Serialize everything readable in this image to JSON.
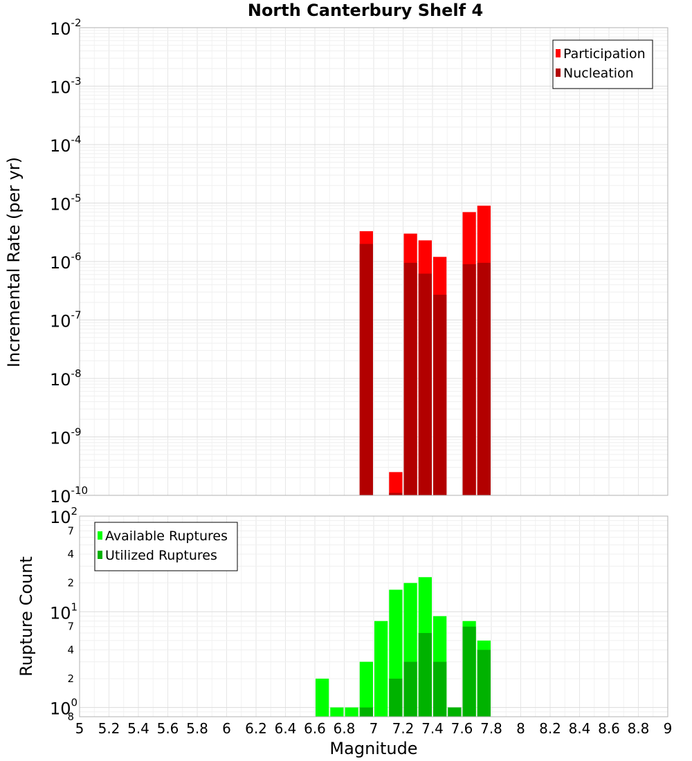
{
  "chart_data": [
    {
      "type": "bar",
      "panel": "top",
      "title": "North Canterbury Shelf 4",
      "ylabel": "Incremental Rate (per yr)",
      "xlabel": "",
      "yscale": "log",
      "ylim": [
        1e-10,
        0.01
      ],
      "xlim": [
        5,
        9
      ],
      "bin_width": 0.1,
      "y_ticks": [
        {
          "base": "10",
          "exp": "-10"
        },
        {
          "base": "10",
          "exp": "-9"
        },
        {
          "base": "10",
          "exp": "-8"
        },
        {
          "base": "10",
          "exp": "-7"
        },
        {
          "base": "10",
          "exp": "-6"
        },
        {
          "base": "10",
          "exp": "-5"
        },
        {
          "base": "10",
          "exp": "-4"
        },
        {
          "base": "10",
          "exp": "-3"
        },
        {
          "base": "10",
          "exp": "-2"
        }
      ],
      "legend": [
        {
          "label": "Participation",
          "color": "#ff0000"
        },
        {
          "label": "Nucleation",
          "color": "#b20000"
        }
      ],
      "series": [
        {
          "name": "Participation",
          "color": "#ff0000",
          "x": [
            6.95,
            7.15,
            7.25,
            7.35,
            7.45,
            7.65,
            7.75
          ],
          "values": [
            3.3e-06,
            2.5e-10,
            3e-06,
            2.3e-06,
            1.2e-06,
            7e-06,
            9e-06
          ]
        },
        {
          "name": "Nucleation",
          "color": "#b20000",
          "x": [
            6.95,
            7.15,
            7.25,
            7.35,
            7.45,
            7.65,
            7.75
          ],
          "values": [
            2e-06,
            1.1e-10,
            9.5e-07,
            6.2e-07,
            2.7e-07,
            9e-07,
            9.5e-07
          ]
        }
      ]
    },
    {
      "type": "bar",
      "panel": "bottom",
      "xlabel": "Magnitude",
      "ylabel": "Rupture Count",
      "yscale": "log",
      "ylim": [
        0.8,
        100
      ],
      "xlim": [
        5,
        9
      ],
      "bin_width": 0.1,
      "x_ticks": [
        "5",
        "5.2",
        "5.4",
        "5.6",
        "5.8",
        "6",
        "6.2",
        "6.4",
        "6.6",
        "6.8",
        "7",
        "7.2",
        "7.4",
        "7.6",
        "7.8",
        "8",
        "8.2",
        "8.4",
        "8.6",
        "8.8",
        "9"
      ],
      "y_ticks": [
        {
          "base": "10",
          "exp": "0"
        },
        {
          "base": "10",
          "exp": "1"
        },
        {
          "base": "10",
          "exp": "2"
        }
      ],
      "y_minor_ticks": [
        "8",
        "2",
        "4",
        "7",
        "2",
        "4",
        "7",
        "2",
        "4",
        "7"
      ],
      "legend": [
        {
          "label": "Available Ruptures",
          "color": "#00ff00"
        },
        {
          "label": "Utilized Ruptures",
          "color": "#00b200"
        }
      ],
      "series": [
        {
          "name": "Available Ruptures",
          "color": "#00ff00",
          "x": [
            6.65,
            6.75,
            6.85,
            6.95,
            7.05,
            7.15,
            7.25,
            7.35,
            7.45,
            7.55,
            7.65,
            7.75
          ],
          "values": [
            2,
            1,
            1,
            3,
            8,
            17,
            20,
            23,
            9,
            1,
            8,
            5
          ]
        },
        {
          "name": "Utilized Ruptures",
          "color": "#00b200",
          "x": [
            6.95,
            7.15,
            7.25,
            7.35,
            7.45,
            7.55,
            7.65,
            7.75
          ],
          "values": [
            1,
            2,
            3,
            6,
            3,
            1,
            7,
            4
          ]
        }
      ]
    }
  ]
}
